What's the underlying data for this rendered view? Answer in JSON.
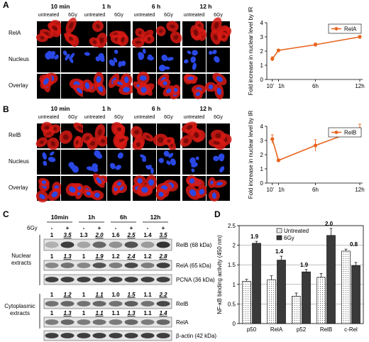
{
  "panels": {
    "a": "A",
    "b": "B",
    "c": "C",
    "d": "D"
  },
  "micro": {
    "timepoints": [
      "10 min",
      "1 h",
      "6 h",
      "12 h"
    ],
    "conditions": [
      "untreated",
      "6Gy"
    ],
    "rows_a": [
      "RelA",
      "Nucleus",
      "Overlay"
    ],
    "rows_b": [
      "RelB",
      "Nucleus",
      "Overlay"
    ]
  },
  "colors": {
    "red_stain": "#d81a14",
    "nuclear_stain": "#2a48e6",
    "line": "#e8641e",
    "background_cell": "#000000"
  },
  "chart_data": [
    {
      "type": "line",
      "panel": "A",
      "x": [
        "10'",
        "1h",
        "6h",
        "12h"
      ],
      "x_hours": [
        0.17,
        1,
        6,
        12
      ],
      "series": [
        {
          "name": "RelA",
          "values": [
            1.45,
            2.05,
            2.45,
            3.0
          ],
          "errors": [
            0.15,
            0.08,
            0.12,
            0.1
          ]
        }
      ],
      "ylabel": "Fold increase in nuclear level by IR",
      "ylim": [
        0,
        4
      ],
      "yticks": [
        "0",
        "1",
        "2",
        "3",
        "4"
      ],
      "legend": "top-right"
    },
    {
      "type": "line",
      "panel": "B",
      "x": [
        "10'",
        "1h",
        "6h",
        "12h"
      ],
      "x_hours": [
        0.17,
        1,
        6,
        12
      ],
      "series": [
        {
          "name": "RelB",
          "values": [
            3.1,
            1.6,
            2.65,
            3.8
          ],
          "errors": [
            0.3,
            0.1,
            0.4,
            0.35
          ]
        }
      ],
      "ylabel": "Fold increase in nuclear level by IR",
      "ylim": [
        0,
        4
      ],
      "yticks": [
        "0",
        "1",
        "2",
        "3",
        "4"
      ],
      "legend": "top-right"
    },
    {
      "type": "bar",
      "panel": "D",
      "categories": [
        "p50",
        "RelA",
        "p52",
        "RelB",
        "c-Rel"
      ],
      "series": [
        {
          "name": "Untreated",
          "values": [
            1.08,
            1.12,
            0.7,
            1.18,
            1.85
          ],
          "errors": [
            0.05,
            0.1,
            0.08,
            0.1,
            0.05
          ]
        },
        {
          "name": "6Gy",
          "values": [
            2.05,
            1.62,
            1.32,
            2.25,
            1.48
          ],
          "errors": [
            0.05,
            0.1,
            0.06,
            0.18,
            0.08
          ]
        }
      ],
      "annotations": [
        "1.9",
        "1.4",
        "1.9",
        "2.0",
        "0.8"
      ],
      "ylabel": "NF-κB binding activity (450 nm)",
      "ylim": [
        0,
        2.5
      ],
      "yticks": [
        "0",
        "0.5",
        "1",
        "1.5",
        "2",
        "2.5"
      ],
      "grid": true,
      "legend": "top-left"
    }
  ],
  "blot": {
    "timepoints": [
      "10min",
      "1h",
      "6h",
      "12h"
    ],
    "dose_label": "6Gy",
    "signs": [
      "-",
      "+",
      "-",
      "+",
      "-",
      "+",
      "-",
      "+"
    ],
    "group_nuclear": [
      "Nuclear",
      "extracts"
    ],
    "group_cyto": [
      "Cytoplasmic",
      "extracts"
    ],
    "band_labels": [
      "RelB (68 kDa)",
      "RelA (65 kDa)",
      "PCNA (36 kDa)",
      "RelB",
      "RelA",
      "β-actin (42 kDa)"
    ],
    "relb_nuc": [
      "1",
      "3.5",
      "1.3",
      "2.0",
      "1.6",
      "2.5",
      "1.4",
      "3.5"
    ],
    "rela_nuc": [
      "1",
      "1.3",
      "1",
      "1.9",
      "1.2",
      "2.4",
      "1.2",
      "2.8"
    ],
    "relb_cyto": [
      "1",
      "1.2",
      "1",
      "1.1",
      "1.0",
      "1.5",
      "1.1",
      "2.2"
    ],
    "rela_cyto": [
      "1",
      "1.3",
      "1",
      "1.1",
      "1.1",
      "1.3",
      "1.1",
      "1.4"
    ]
  }
}
